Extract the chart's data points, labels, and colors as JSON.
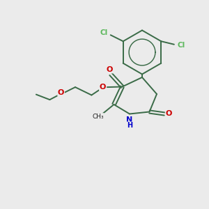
{
  "bg_color": "#ebebeb",
  "bond_color": "#3a6b47",
  "cl_color": "#5db85d",
  "o_color": "#cc0000",
  "n_color": "#0000cc",
  "lw": 1.4,
  "fig_size": [
    3.0,
    3.0
  ],
  "dpi": 100,
  "xlim": [
    0,
    10
  ],
  "ylim": [
    0,
    10
  ]
}
